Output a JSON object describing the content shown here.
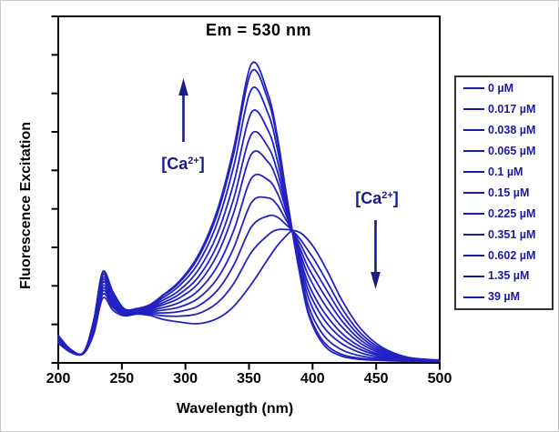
{
  "figure": {
    "title": "Em = 530 nm",
    "x_axis": {
      "label": "Wavelength (nm)",
      "tick_labels": [
        "200",
        "250",
        "300",
        "350",
        "400",
        "450",
        "500"
      ]
    },
    "y_axis": {
      "label": "Fluorescence Excitation",
      "tick_count": 10,
      "tick_labels_visible": false
    }
  },
  "annotations": {
    "left": {
      "pre": "[Ca",
      "sup": "2+",
      "post": "]",
      "arrow_direction": "up",
      "meaning": "main excitation peak increases with calcium"
    },
    "right": {
      "pre": "[Ca",
      "sup": "2+",
      "post": "]",
      "arrow_direction": "down",
      "meaning": "long-wavelength band decreases with calcium"
    }
  },
  "colors": {
    "curve": "#2222c0",
    "annotation": "#1b1b85",
    "legend_text": "#1b1b9b",
    "axis": "#000000"
  },
  "chart_data": {
    "type": "line",
    "title": "Em = 530 nm",
    "xlabel": "Wavelength (nm)",
    "ylabel": "Fluorescence Excitation",
    "x_range_nm": [
      200,
      500
    ],
    "x_tick_step_nm": 50,
    "y_units": "normalized fluorescence (unlabeled axis, 0 = baseline, 1 = plot top)",
    "y_range": [
      0,
      1
    ],
    "grid": false,
    "legend_position": "outside-right",
    "isosbestic_point": {
      "wavelength_nm": 384,
      "value": 0.381
    },
    "main_peak_nm": 352,
    "secondary_peak_nm": 235,
    "x": [
      200,
      210,
      220,
      228,
      235,
      243,
      252,
      262,
      272,
      282,
      295,
      310,
      325,
      338,
      352,
      365,
      372,
      378,
      384,
      390,
      396,
      403,
      412,
      424,
      438,
      455,
      475,
      500
    ],
    "series": [
      {
        "name": "0 µM",
        "values": [
          0.057,
          0.03,
          0.027,
          0.085,
          0.187,
          0.152,
          0.136,
          0.141,
          0.137,
          0.126,
          0.118,
          0.113,
          0.128,
          0.163,
          0.228,
          0.3,
          0.337,
          0.362,
          0.381,
          0.376,
          0.357,
          0.322,
          0.262,
          0.175,
          0.098,
          0.044,
          0.016,
          0.008
        ]
      },
      {
        "name": "0.017 µM",
        "values": [
          0.06,
          0.031,
          0.028,
          0.091,
          0.198,
          0.16,
          0.139,
          0.143,
          0.141,
          0.136,
          0.135,
          0.142,
          0.173,
          0.229,
          0.32,
          0.369,
          0.384,
          0.385,
          0.381,
          0.358,
          0.327,
          0.288,
          0.23,
          0.152,
          0.085,
          0.039,
          0.014,
          0.007
        ]
      },
      {
        "name": "0.038 µM",
        "values": [
          0.063,
          0.032,
          0.028,
          0.095,
          0.207,
          0.166,
          0.141,
          0.145,
          0.145,
          0.144,
          0.148,
          0.164,
          0.209,
          0.282,
          0.393,
          0.424,
          0.421,
          0.403,
          0.381,
          0.345,
          0.303,
          0.26,
          0.204,
          0.134,
          0.075,
          0.034,
          0.013,
          0.007
        ]
      },
      {
        "name": "0.065 µM",
        "values": [
          0.065,
          0.033,
          0.028,
          0.1,
          0.215,
          0.172,
          0.143,
          0.147,
          0.148,
          0.152,
          0.161,
          0.186,
          0.243,
          0.332,
          0.463,
          0.476,
          0.457,
          0.42,
          0.381,
          0.331,
          0.28,
          0.234,
          0.18,
          0.117,
          0.065,
          0.03,
          0.012,
          0.007
        ]
      },
      {
        "name": "0.1 µM",
        "values": [
          0.068,
          0.034,
          0.029,
          0.104,
          0.223,
          0.177,
          0.146,
          0.149,
          0.152,
          0.159,
          0.174,
          0.208,
          0.278,
          0.382,
          0.533,
          0.528,
          0.492,
          0.438,
          0.381,
          0.318,
          0.258,
          0.208,
          0.155,
          0.1,
          0.056,
          0.026,
          0.011,
          0.006
        ]
      },
      {
        "name": "0.15 µM",
        "values": [
          0.07,
          0.035,
          0.029,
          0.109,
          0.232,
          0.183,
          0.148,
          0.15,
          0.155,
          0.167,
          0.187,
          0.229,
          0.312,
          0.433,
          0.603,
          0.58,
          0.528,
          0.455,
          0.381,
          0.305,
          0.235,
          0.182,
          0.131,
          0.082,
          0.046,
          0.022,
          0.01,
          0.006
        ]
      },
      {
        "name": "0.225 µM",
        "values": [
          0.072,
          0.035,
          0.03,
          0.112,
          0.239,
          0.188,
          0.15,
          0.152,
          0.158,
          0.173,
          0.198,
          0.247,
          0.34,
          0.474,
          0.66,
          0.623,
          0.557,
          0.469,
          0.381,
          0.294,
          0.216,
          0.161,
          0.111,
          0.068,
          0.038,
          0.019,
          0.009,
          0.005
        ]
      },
      {
        "name": "0.351 µM",
        "values": [
          0.074,
          0.036,
          0.03,
          0.116,
          0.246,
          0.193,
          0.152,
          0.153,
          0.161,
          0.18,
          0.209,
          0.267,
          0.371,
          0.519,
          0.723,
          0.671,
          0.589,
          0.485,
          0.381,
          0.282,
          0.196,
          0.137,
          0.089,
          0.053,
          0.029,
          0.015,
          0.007,
          0.005
        ]
      },
      {
        "name": "0.602 µM",
        "values": [
          0.076,
          0.037,
          0.031,
          0.12,
          0.254,
          0.199,
          0.154,
          0.155,
          0.164,
          0.187,
          0.222,
          0.287,
          0.404,
          0.567,
          0.79,
          0.72,
          0.623,
          0.502,
          0.381,
          0.269,
          0.174,
          0.112,
          0.066,
          0.036,
          0.02,
          0.011,
          0.006,
          0.004
        ]
      },
      {
        "name": "1.35 µM",
        "values": [
          0.078,
          0.038,
          0.031,
          0.124,
          0.26,
          0.203,
          0.155,
          0.156,
          0.167,
          0.193,
          0.231,
          0.303,
          0.429,
          0.604,
          0.841,
          0.758,
          0.649,
          0.514,
          0.381,
          0.259,
          0.157,
          0.093,
          0.048,
          0.023,
          0.013,
          0.008,
          0.005,
          0.004
        ]
      },
      {
        "name": "39 µM",
        "values": [
          0.079,
          0.038,
          0.031,
          0.125,
          0.263,
          0.205,
          0.156,
          0.157,
          0.168,
          0.195,
          0.235,
          0.31,
          0.44,
          0.62,
          0.863,
          0.775,
          0.66,
          0.52,
          0.381,
          0.255,
          0.15,
          0.085,
          0.04,
          0.018,
          0.01,
          0.007,
          0.005,
          0.004
        ]
      }
    ]
  }
}
